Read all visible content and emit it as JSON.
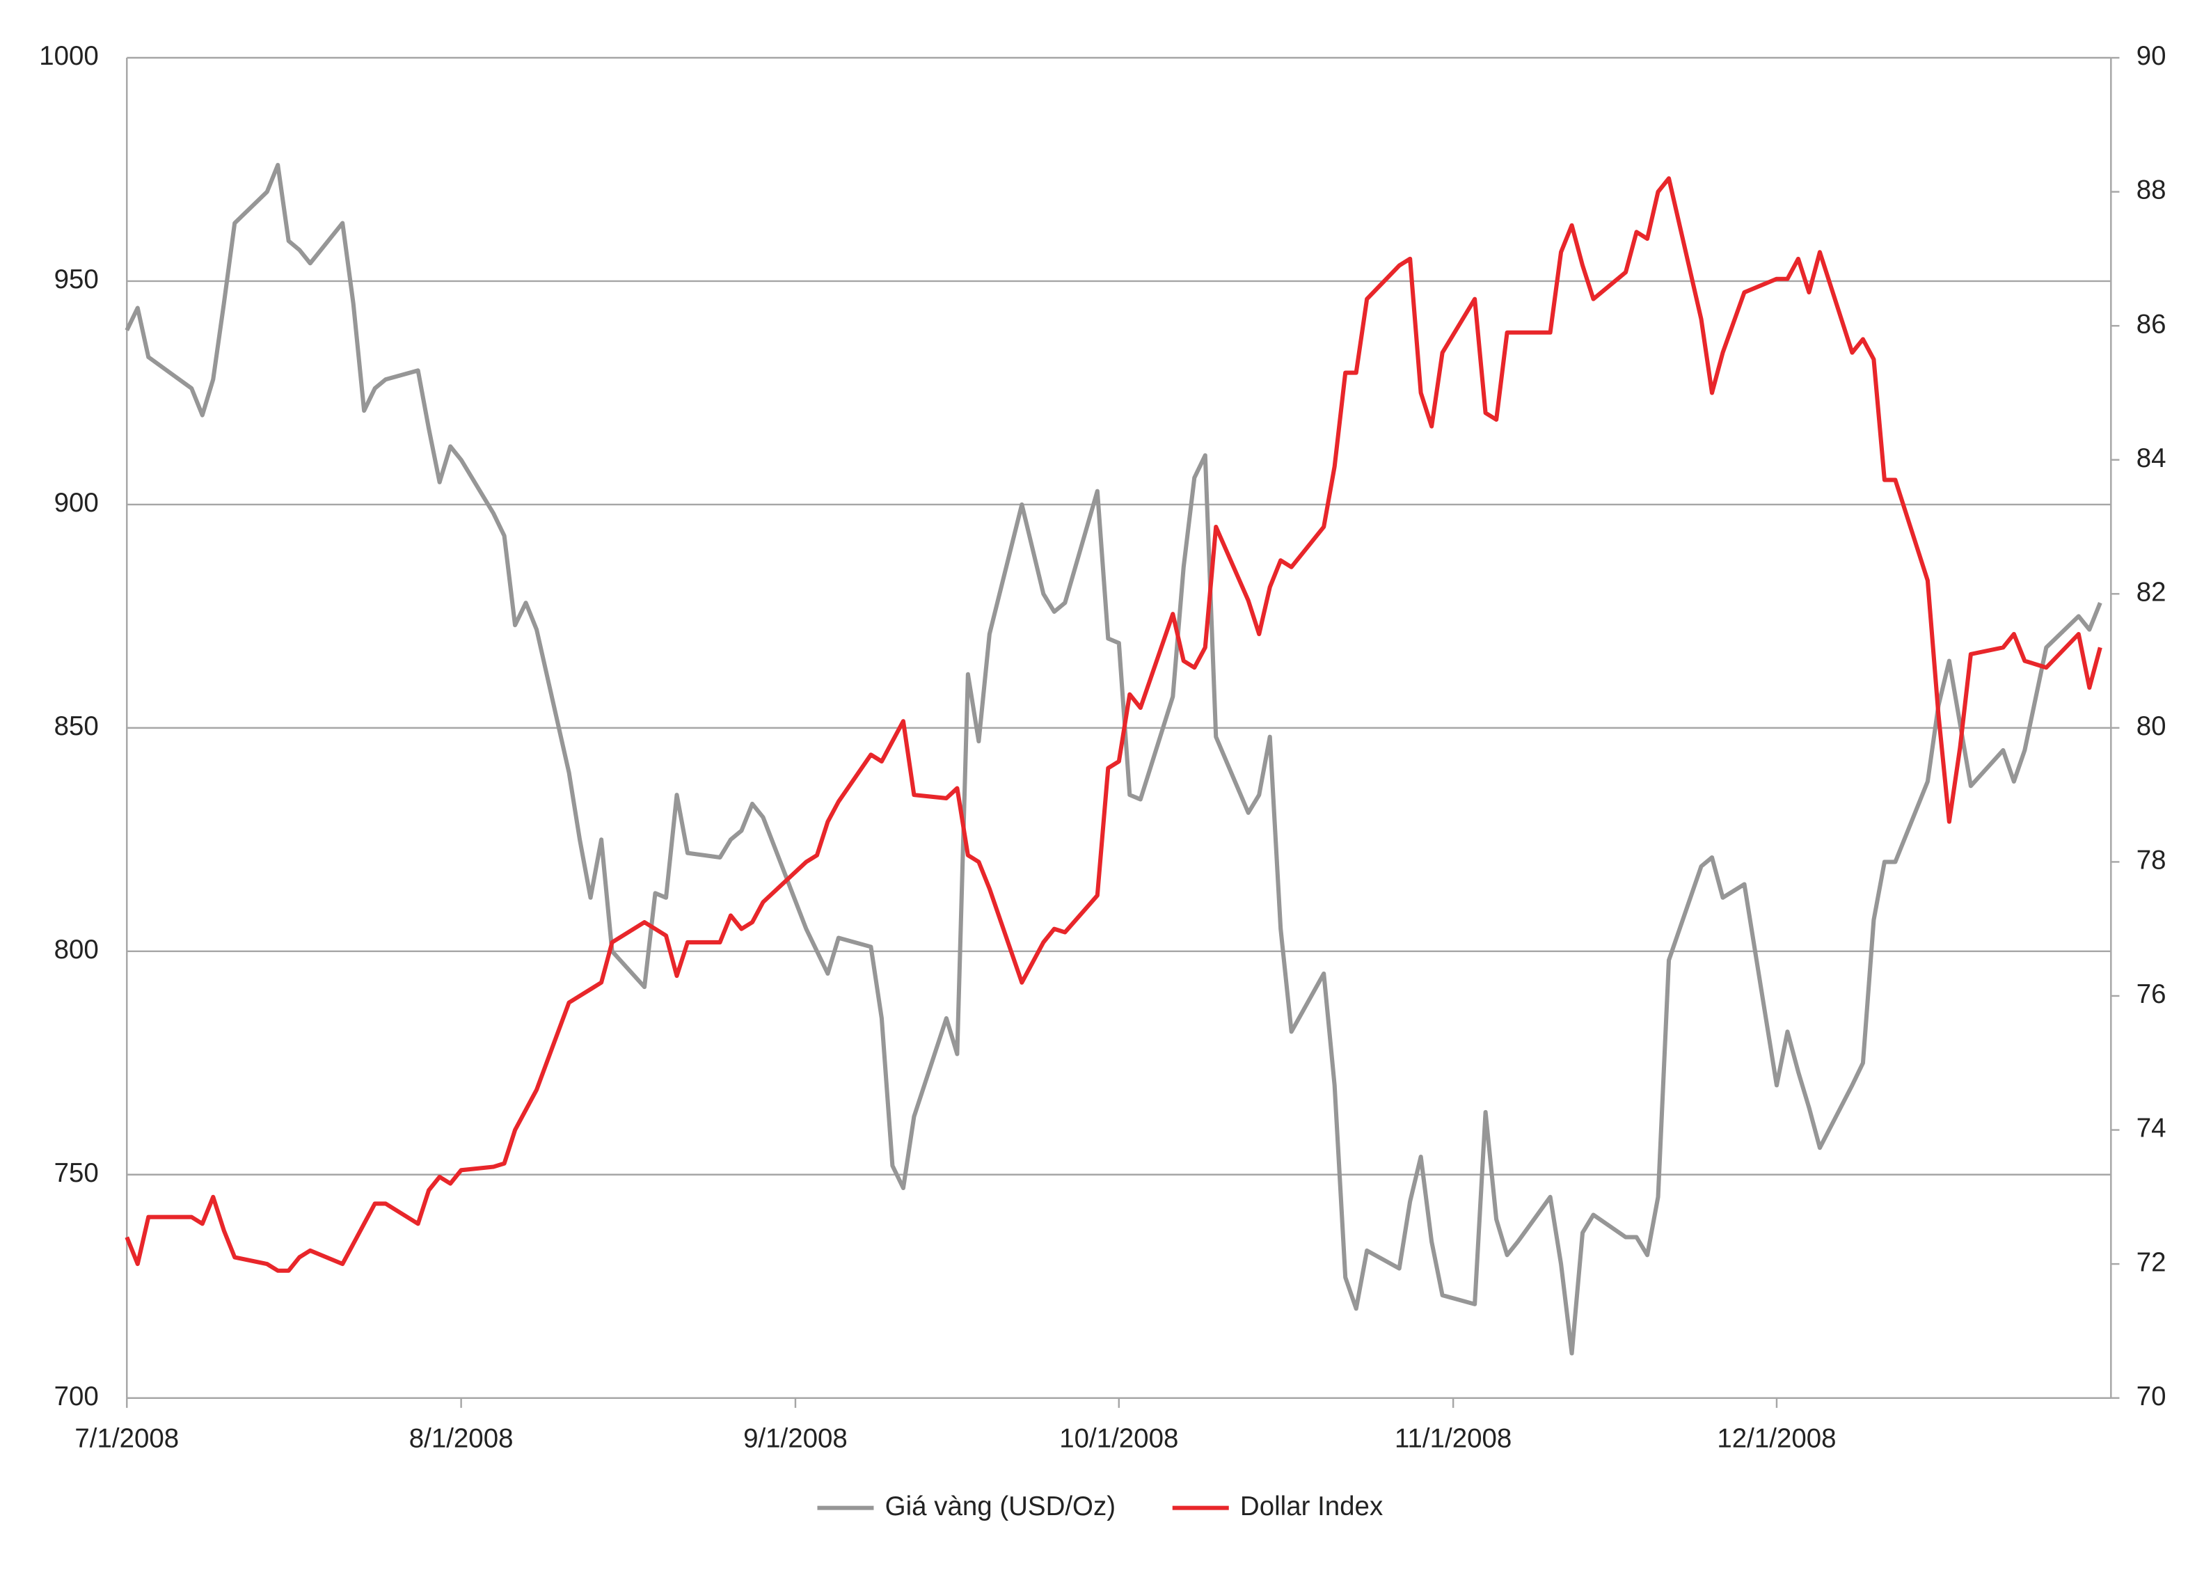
{
  "chart_data": {
    "type": "line",
    "x": [
      "2008-07-01",
      "2008-07-02",
      "2008-07-03",
      "2008-07-07",
      "2008-07-08",
      "2008-07-09",
      "2008-07-10",
      "2008-07-11",
      "2008-07-14",
      "2008-07-15",
      "2008-07-16",
      "2008-07-17",
      "2008-07-18",
      "2008-07-21",
      "2008-07-22",
      "2008-07-23",
      "2008-07-24",
      "2008-07-25",
      "2008-07-28",
      "2008-07-29",
      "2008-07-30",
      "2008-07-31",
      "2008-08-01",
      "2008-08-04",
      "2008-08-05",
      "2008-08-06",
      "2008-08-07",
      "2008-08-08",
      "2008-08-11",
      "2008-08-12",
      "2008-08-13",
      "2008-08-14",
      "2008-08-15",
      "2008-08-18",
      "2008-08-19",
      "2008-08-20",
      "2008-08-21",
      "2008-08-22",
      "2008-08-25",
      "2008-08-26",
      "2008-08-27",
      "2008-08-28",
      "2008-08-29",
      "2008-09-02",
      "2008-09-03",
      "2008-09-04",
      "2008-09-05",
      "2008-09-08",
      "2008-09-09",
      "2008-09-10",
      "2008-09-11",
      "2008-09-12",
      "2008-09-15",
      "2008-09-16",
      "2008-09-17",
      "2008-09-18",
      "2008-09-19",
      "2008-09-22",
      "2008-09-23",
      "2008-09-24",
      "2008-09-25",
      "2008-09-26",
      "2008-09-29",
      "2008-09-30",
      "2008-10-01",
      "2008-10-02",
      "2008-10-03",
      "2008-10-06",
      "2008-10-07",
      "2008-10-08",
      "2008-10-09",
      "2008-10-10",
      "2008-10-13",
      "2008-10-14",
      "2008-10-15",
      "2008-10-16",
      "2008-10-17",
      "2008-10-20",
      "2008-10-21",
      "2008-10-22",
      "2008-10-23",
      "2008-10-24",
      "2008-10-27",
      "2008-10-28",
      "2008-10-29",
      "2008-10-30",
      "2008-10-31",
      "2008-11-03",
      "2008-11-04",
      "2008-11-05",
      "2008-11-06",
      "2008-11-07",
      "2008-11-10",
      "2008-11-11",
      "2008-11-12",
      "2008-11-13",
      "2008-11-14",
      "2008-11-17",
      "2008-11-18",
      "2008-11-19",
      "2008-11-20",
      "2008-11-21",
      "2008-11-24",
      "2008-11-25",
      "2008-11-26",
      "2008-11-28",
      "2008-12-01",
      "2008-12-02",
      "2008-12-03",
      "2008-12-04",
      "2008-12-05",
      "2008-12-08",
      "2008-12-09",
      "2008-12-10",
      "2008-12-11",
      "2008-12-12",
      "2008-12-15",
      "2008-12-16",
      "2008-12-17",
      "2008-12-18",
      "2008-12-19",
      "2008-12-22",
      "2008-12-23",
      "2008-12-24",
      "2008-12-26",
      "2008-12-29",
      "2008-12-30",
      "2008-12-31"
    ],
    "series": [
      {
        "name": "Giá vàng (USD/Oz)",
        "color": "#969696",
        "values": [
          939,
          944,
          933,
          926,
          920,
          928,
          945,
          963,
          970,
          976,
          959,
          957,
          954,
          963,
          945,
          921,
          926,
          928,
          930,
          917,
          905,
          913,
          910,
          898,
          893,
          873,
          878,
          872,
          840,
          825,
          812,
          825,
          800,
          792,
          813,
          812,
          835,
          822,
          821,
          825,
          827,
          833,
          830,
          805,
          800,
          795,
          803,
          801,
          785,
          752,
          747,
          763,
          785,
          777,
          862,
          847,
          871,
          900,
          890,
          880,
          876,
          878,
          903,
          870,
          869,
          835,
          834,
          857,
          886,
          906,
          911,
          848,
          831,
          835,
          848,
          805,
          782,
          795,
          770,
          727,
          720,
          733,
          729,
          744,
          754,
          735,
          723,
          721,
          764,
          740,
          732,
          735,
          745,
          730,
          710,
          737,
          741,
          736,
          736,
          732,
          745,
          798,
          819,
          821,
          812,
          815,
          770,
          782,
          773,
          765,
          756,
          770,
          775,
          807,
          820,
          820,
          838,
          855,
          865,
          851,
          837,
          845,
          838,
          845,
          868,
          875,
          872,
          878
        ]
      },
      {
        "name": "Dollar Index",
        "color": "#e8262a",
        "axis": "y2",
        "values": [
          72.4,
          72.0,
          72.7,
          72.7,
          72.6,
          73.0,
          72.5,
          72.1,
          72.0,
          71.9,
          71.9,
          72.1,
          72.2,
          72.0,
          72.3,
          72.6,
          72.9,
          72.9,
          72.6,
          73.1,
          73.3,
          73.2,
          73.4,
          73.45,
          73.5,
          74.0,
          74.3,
          74.6,
          75.9,
          76.0,
          76.1,
          76.2,
          76.8,
          77.1,
          77.0,
          76.9,
          76.3,
          76.8,
          76.8,
          77.2,
          77.0,
          77.1,
          77.4,
          78.0,
          78.1,
          78.6,
          78.9,
          79.6,
          79.5,
          79.8,
          80.1,
          79.0,
          78.95,
          79.1,
          78.1,
          78.0,
          77.6,
          76.2,
          76.5,
          76.8,
          77.0,
          76.95,
          77.5,
          79.4,
          79.5,
          80.5,
          80.3,
          81.7,
          81.0,
          80.9,
          81.2,
          83.0,
          81.9,
          81.4,
          82.1,
          82.5,
          82.4,
          83.0,
          83.9,
          85.3,
          85.3,
          86.4,
          86.9,
          87.0,
          85.0,
          84.5,
          85.6,
          86.4,
          84.7,
          84.6,
          85.9,
          85.9,
          85.9,
          87.1,
          87.5,
          86.9,
          86.4,
          86.8,
          87.4,
          87.3,
          88.0,
          88.2,
          86.1,
          85.0,
          85.6,
          86.5,
          86.7,
          86.7,
          87.0,
          86.5,
          87.1,
          85.6,
          85.8,
          85.5,
          83.7,
          83.7,
          82.2,
          80.2,
          78.6,
          79.7,
          81.1,
          81.2,
          81.4,
          81.0,
          80.9,
          81.4,
          80.6,
          81.2
        ]
      }
    ],
    "xlim": [
      "2008-07-01",
      "2009-01-01"
    ],
    "xticks": [
      {
        "value": "2008-07-01",
        "label": "7/1/2008"
      },
      {
        "value": "2008-08-01",
        "label": "8/1/2008"
      },
      {
        "value": "2008-09-01",
        "label": "9/1/2008"
      },
      {
        "value": "2008-10-01",
        "label": "10/1/2008"
      },
      {
        "value": "2008-11-01",
        "label": "11/1/2008"
      },
      {
        "value": "2008-12-01",
        "label": "12/1/2008"
      }
    ],
    "ylim": [
      700,
      1000
    ],
    "yticks": [
      700,
      750,
      800,
      850,
      900,
      950,
      1000
    ],
    "y2lim": [
      70,
      90
    ],
    "y2ticks": [
      70,
      72,
      74,
      76,
      78,
      80,
      82,
      84,
      86,
      88,
      90
    ],
    "grid": true,
    "legend": "bottom"
  }
}
